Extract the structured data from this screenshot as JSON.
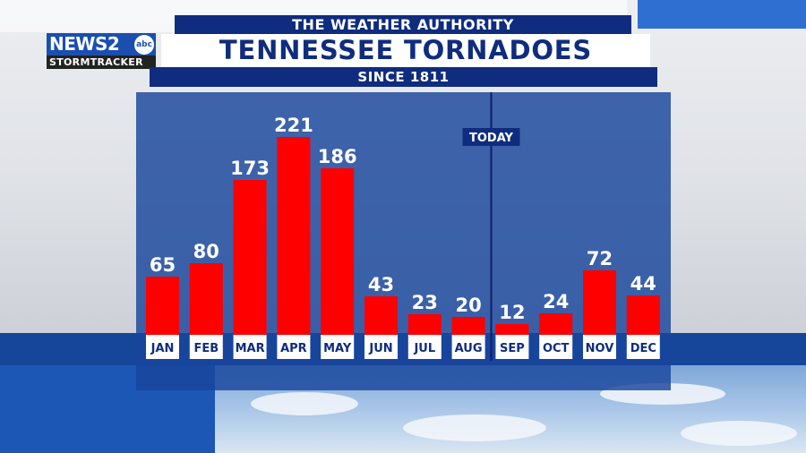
{
  "branding": {
    "logo_main": "NEWS2",
    "logo_abc": "abc",
    "logo_sub": "STORMTRACKER"
  },
  "header": {
    "top": "THE WEATHER AUTHORITY",
    "title": "TENNESSEE TORNADOES",
    "subtitle": "SINCE 1811"
  },
  "chart_data": {
    "type": "bar",
    "categories": [
      "JAN",
      "FEB",
      "MAR",
      "APR",
      "MAY",
      "JUN",
      "JUL",
      "AUG",
      "SEP",
      "OCT",
      "NOV",
      "DEC"
    ],
    "values": [
      65,
      80,
      173,
      221,
      186,
      43,
      23,
      20,
      12,
      24,
      72,
      44
    ],
    "title": "TENNESSEE TORNADOES",
    "subtitle": "SINCE 1811",
    "xlabel": "",
    "ylabel": "",
    "ylim": [
      0,
      221
    ],
    "annotation": {
      "label": "TODAY",
      "between": [
        "AUG",
        "SEP"
      ]
    },
    "bar_color": "#ff0000",
    "grid": false,
    "legend": "none"
  }
}
